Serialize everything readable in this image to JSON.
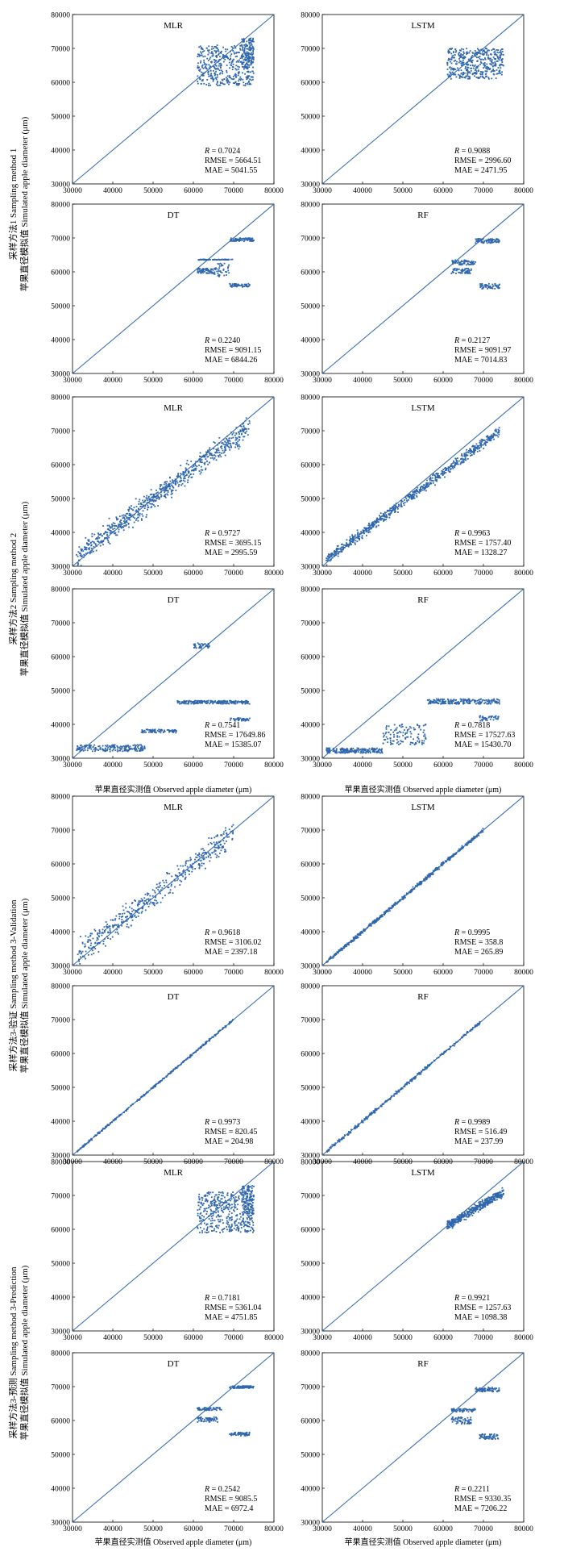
{
  "figure": {
    "x_axis_label": "苹果直径实测值 Observed apple diameter (μm)",
    "groups": [
      {
        "ylabel_line1": "采样方法1 Sampling method 1",
        "ylabel_line2": "苹果直径模拟值 Simulated apple diameter (μm)"
      },
      {
        "ylabel_line1": "采样方法2 Sampling method 2",
        "ylabel_line2": "苹果直径模拟值 Simulated apple diameter (μm)"
      },
      {
        "ylabel_line1": "采样方法3-验证 Sampling method 3-Validation",
        "ylabel_line2": "苹果直径模拟值 Simulated apple diameter (μm)"
      },
      {
        "ylabel_line1": "采样方法3-预测 Sampling method 3-Prediction",
        "ylabel_line2": "苹果直径模拟值 Simulated apple diameter (μm)"
      }
    ]
  },
  "colors": {
    "line": "#3a70b5",
    "points": "#2f67ae",
    "axes": "#000000"
  },
  "chart_data": [
    {
      "type": "scatter",
      "group": 1,
      "title": "MLR",
      "xlim": [
        30000,
        80000
      ],
      "ylim": [
        30000,
        80000
      ],
      "xticks": [
        30000,
        40000,
        50000,
        60000,
        70000,
        80000
      ],
      "yticks": [
        30000,
        40000,
        50000,
        60000,
        70000,
        80000
      ],
      "reference_line": "1:1",
      "stats": {
        "R": "0.7024",
        "RMSE": "5664.51",
        "MAE": "5041.55"
      },
      "point_clusters": [
        {
          "x": [
            61000,
            75000
          ],
          "y": [
            59000,
            71000
          ],
          "n": 420
        },
        {
          "x": [
            72000,
            75000
          ],
          "y": [
            64000,
            73000
          ],
          "n": 120
        }
      ]
    },
    {
      "type": "scatter",
      "group": 1,
      "title": "LSTM",
      "xlim": [
        30000,
        80000
      ],
      "ylim": [
        30000,
        80000
      ],
      "xticks": [
        30000,
        40000,
        50000,
        60000,
        70000,
        80000
      ],
      "yticks": [
        30000,
        40000,
        50000,
        60000,
        70000,
        80000
      ],
      "reference_line": "1:1",
      "stats": {
        "R": "0.9088",
        "RMSE": "2996.60",
        "MAE": "2471.95"
      },
      "point_clusters": [
        {
          "x": [
            61000,
            75000
          ],
          "y": [
            61000,
            70000
          ],
          "n": 420
        }
      ]
    },
    {
      "type": "scatter",
      "group": 1,
      "title": "DT",
      "xlim": [
        30000,
        80000
      ],
      "ylim": [
        30000,
        80000
      ],
      "xticks": [
        30000,
        40000,
        50000,
        60000,
        70000,
        80000
      ],
      "yticks": [
        30000,
        40000,
        50000,
        60000,
        70000,
        80000
      ],
      "reference_line": "1:1",
      "stats": {
        "R": "0.2240",
        "RMSE": "9091.15",
        "MAE": "6844.26"
      },
      "point_clusters": [
        {
          "x": [
            61000,
            70000
          ],
          "y": [
            63500,
            63700
          ],
          "n": 60
        },
        {
          "x": [
            61000,
            65000
          ],
          "y": [
            59500,
            61000
          ],
          "n": 60
        },
        {
          "x": [
            69000,
            75000
          ],
          "y": [
            69000,
            70000
          ],
          "n": 80
        },
        {
          "x": [
            69000,
            74000
          ],
          "y": [
            55500,
            56500
          ],
          "n": 60
        },
        {
          "x": [
            65000,
            69000
          ],
          "y": [
            58500,
            62500
          ],
          "n": 40
        }
      ]
    },
    {
      "type": "scatter",
      "group": 1,
      "title": "RF",
      "xlim": [
        30000,
        80000
      ],
      "ylim": [
        30000,
        80000
      ],
      "xticks": [
        30000,
        40000,
        50000,
        60000,
        70000,
        80000
      ],
      "yticks": [
        30000,
        40000,
        50000,
        60000,
        70000,
        80000
      ],
      "reference_line": "1:1",
      "stats": {
        "R": "0.2127",
        "RMSE": "9091.97",
        "MAE": "7014.83"
      },
      "point_clusters": [
        {
          "x": [
            62000,
            68000
          ],
          "y": [
            62000,
            63500
          ],
          "n": 60
        },
        {
          "x": [
            62000,
            67000
          ],
          "y": [
            59500,
            61000
          ],
          "n": 60
        },
        {
          "x": [
            68000,
            74000
          ],
          "y": [
            68500,
            69800
          ],
          "n": 80
        },
        {
          "x": [
            69000,
            74000
          ],
          "y": [
            55000,
            56500
          ],
          "n": 60
        }
      ]
    },
    {
      "type": "scatter",
      "group": 2,
      "title": "MLR",
      "xlim": [
        30000,
        80000
      ],
      "ylim": [
        30000,
        80000
      ],
      "xticks": [
        30000,
        40000,
        50000,
        60000,
        70000,
        80000
      ],
      "yticks": [
        30000,
        40000,
        50000,
        60000,
        70000,
        80000
      ],
      "reference_line": "1:1",
      "stats": {
        "R": "0.9727",
        "RMSE": "3695.15",
        "MAE": "2995.59"
      },
      "point_clusters": [
        {
          "x": [
            31000,
            74000
          ],
          "y": [
            33000,
            71000
          ],
          "n": 700,
          "trend": "diag",
          "spread": 3000
        }
      ]
    },
    {
      "type": "scatter",
      "group": 2,
      "title": "LSTM",
      "xlim": [
        30000,
        80000
      ],
      "ylim": [
        30000,
        80000
      ],
      "xticks": [
        30000,
        40000,
        50000,
        60000,
        70000,
        80000
      ],
      "yticks": [
        30000,
        40000,
        50000,
        60000,
        70000,
        80000
      ],
      "reference_line": "1:1",
      "stats": {
        "R": "0.9963",
        "RMSE": "1757.40",
        "MAE": "1328.27"
      },
      "point_clusters": [
        {
          "x": [
            31000,
            74000
          ],
          "y": [
            32000,
            70000
          ],
          "n": 700,
          "trend": "diag",
          "spread": 1400
        }
      ]
    },
    {
      "type": "scatter",
      "group": 2,
      "title": "DT",
      "xlim": [
        30000,
        80000
      ],
      "ylim": [
        30000,
        80000
      ],
      "xticks": [
        30000,
        40000,
        50000,
        60000,
        70000,
        80000
      ],
      "yticks": [
        30000,
        40000,
        50000,
        60000,
        70000,
        80000
      ],
      "reference_line": "1:1",
      "stats": {
        "R": "0.7541",
        "RMSE": "17649.86",
        "MAE": "15385.07"
      },
      "point_clusters": [
        {
          "x": [
            31000,
            48000
          ],
          "y": [
            32000,
            34000
          ],
          "n": 200
        },
        {
          "x": [
            47000,
            56000
          ],
          "y": [
            37500,
            38500
          ],
          "n": 80
        },
        {
          "x": [
            56000,
            74000
          ],
          "y": [
            46000,
            47000
          ],
          "n": 200
        },
        {
          "x": [
            60000,
            64000
          ],
          "y": [
            62500,
            64000
          ],
          "n": 40
        },
        {
          "x": [
            69000,
            74000
          ],
          "y": [
            41000,
            42000
          ],
          "n": 40
        }
      ]
    },
    {
      "type": "scatter",
      "group": 2,
      "title": "RF",
      "xlim": [
        30000,
        80000
      ],
      "ylim": [
        30000,
        80000
      ],
      "xticks": [
        30000,
        40000,
        50000,
        60000,
        70000,
        80000
      ],
      "yticks": [
        30000,
        40000,
        50000,
        60000,
        70000,
        80000
      ],
      "reference_line": "1:1",
      "stats": {
        "R": "0.7818",
        "RMSE": "17527.63",
        "MAE": "15430.70"
      },
      "point_clusters": [
        {
          "x": [
            31000,
            45000
          ],
          "y": [
            31500,
            33000
          ],
          "n": 200
        },
        {
          "x": [
            45000,
            56000
          ],
          "y": [
            34000,
            40000
          ],
          "n": 120
        },
        {
          "x": [
            56000,
            74000
          ],
          "y": [
            46000,
            47500
          ],
          "n": 200
        },
        {
          "x": [
            69000,
            74000
          ],
          "y": [
            41000,
            42500
          ],
          "n": 40
        }
      ]
    },
    {
      "type": "scatter",
      "group": 3,
      "title": "MLR",
      "xlim": [
        30000,
        80000
      ],
      "ylim": [
        30000,
        80000
      ],
      "xticks": [
        30000,
        40000,
        50000,
        60000,
        70000,
        80000
      ],
      "yticks": [
        30000,
        40000,
        50000,
        60000,
        70000,
        80000
      ],
      "reference_line": "1:1",
      "stats": {
        "R": "0.9618",
        "RMSE": "3106.02",
        "MAE": "2397.18"
      },
      "point_clusters": [
        {
          "x": [
            31000,
            70000
          ],
          "y": [
            33000,
            69000
          ],
          "n": 450,
          "trend": "diag",
          "spread": 3500
        }
      ]
    },
    {
      "type": "scatter",
      "group": 3,
      "title": "LSTM",
      "xlim": [
        30000,
        80000
      ],
      "ylim": [
        30000,
        80000
      ],
      "xticks": [
        30000,
        40000,
        50000,
        60000,
        70000,
        80000
      ],
      "yticks": [
        30000,
        40000,
        50000,
        60000,
        70000,
        80000
      ],
      "reference_line": "1:1",
      "stats": {
        "R": "0.9995",
        "RMSE": "358.8",
        "MAE": "265.89"
      },
      "point_clusters": [
        {
          "x": [
            31000,
            70000
          ],
          "y": [
            31000,
            70000
          ],
          "n": 500,
          "trend": "diag",
          "spread": 500
        }
      ]
    },
    {
      "type": "scatter",
      "group": 3,
      "title": "DT",
      "xlim": [
        30000,
        80000
      ],
      "ylim": [
        30000,
        80000
      ],
      "xticks": [
        30000,
        40000,
        50000,
        60000,
        70000,
        80000
      ],
      "yticks": [
        30000,
        40000,
        50000,
        60000,
        70000,
        80000
      ],
      "reference_line": "1:1",
      "stats": {
        "R": "0.9973",
        "RMSE": "820.45",
        "MAE": "204.98"
      },
      "point_clusters": [
        {
          "x": [
            31000,
            70000
          ],
          "y": [
            31000,
            70000
          ],
          "n": 300,
          "trend": "diag",
          "spread": 300
        }
      ]
    },
    {
      "type": "scatter",
      "group": 3,
      "title": "RF",
      "xlim": [
        30000,
        80000
      ],
      "ylim": [
        30000,
        80000
      ],
      "xticks": [
        30000,
        40000,
        50000,
        60000,
        70000,
        80000
      ],
      "yticks": [
        30000,
        40000,
        50000,
        60000,
        70000,
        80000
      ],
      "reference_line": "1:1",
      "stats": {
        "R": "0.9989",
        "RMSE": "516.49",
        "MAE": "237.99"
      },
      "point_clusters": [
        {
          "x": [
            31000,
            70000
          ],
          "y": [
            31000,
            70000
          ],
          "n": 300,
          "trend": "diag",
          "spread": 450
        }
      ]
    },
    {
      "type": "scatter",
      "group": 4,
      "title": "MLR",
      "xlim": [
        30000,
        80000
      ],
      "ylim": [
        30000,
        80000
      ],
      "xticks": [
        30000,
        40000,
        50000,
        60000,
        70000,
        80000
      ],
      "yticks": [
        30000,
        40000,
        50000,
        60000,
        70000,
        80000
      ],
      "reference_line": "1:1",
      "stats": {
        "R": "0.7181",
        "RMSE": "5361.04",
        "MAE": "4751.85"
      },
      "point_clusters": [
        {
          "x": [
            61000,
            75000
          ],
          "y": [
            59000,
            71000
          ],
          "n": 420
        },
        {
          "x": [
            72000,
            75000
          ],
          "y": [
            64000,
            73000
          ],
          "n": 120
        }
      ]
    },
    {
      "type": "scatter",
      "group": 4,
      "title": "LSTM",
      "xlim": [
        30000,
        80000
      ],
      "ylim": [
        30000,
        80000
      ],
      "xticks": [
        30000,
        40000,
        50000,
        60000,
        70000,
        80000
      ],
      "yticks": [
        30000,
        40000,
        50000,
        60000,
        70000,
        80000
      ],
      "reference_line": "1:1",
      "stats": {
        "R": "0.9921",
        "RMSE": "1257.63",
        "MAE": "1098.38"
      },
      "point_clusters": [
        {
          "x": [
            61000,
            75000
          ],
          "y": [
            61000,
            71000
          ],
          "n": 420,
          "trend": "diag",
          "spread": 1200
        }
      ]
    },
    {
      "type": "scatter",
      "group": 4,
      "title": "DT",
      "xlim": [
        30000,
        80000
      ],
      "ylim": [
        30000,
        80000
      ],
      "xticks": [
        30000,
        40000,
        50000,
        60000,
        70000,
        80000
      ],
      "yticks": [
        30000,
        40000,
        50000,
        60000,
        70000,
        80000
      ],
      "reference_line": "1:1",
      "stats": {
        "R": "0.2542",
        "RMSE": "9085.5",
        "MAE": "6972.4"
      },
      "point_clusters": [
        {
          "x": [
            61000,
            67000
          ],
          "y": [
            63000,
            63800
          ],
          "n": 60
        },
        {
          "x": [
            61000,
            66000
          ],
          "y": [
            59500,
            61000
          ],
          "n": 60
        },
        {
          "x": [
            69000,
            75000
          ],
          "y": [
            69500,
            70200
          ],
          "n": 80
        },
        {
          "x": [
            69000,
            74000
          ],
          "y": [
            55500,
            56500
          ],
          "n": 60
        }
      ]
    },
    {
      "type": "scatter",
      "group": 4,
      "title": "RF",
      "xlim": [
        30000,
        80000
      ],
      "ylim": [
        30000,
        80000
      ],
      "xticks": [
        30000,
        40000,
        50000,
        60000,
        70000,
        80000
      ],
      "yticks": [
        30000,
        40000,
        50000,
        60000,
        70000,
        80000
      ],
      "reference_line": "1:1",
      "stats": {
        "R": "0.2211",
        "RMSE": "9330.35",
        "MAE": "7206.22"
      },
      "point_clusters": [
        {
          "x": [
            62000,
            68000
          ],
          "y": [
            62500,
            63500
          ],
          "n": 60
        },
        {
          "x": [
            62000,
            67000
          ],
          "y": [
            59000,
            61000
          ],
          "n": 60
        },
        {
          "x": [
            68000,
            74000
          ],
          "y": [
            68500,
            69800
          ],
          "n": 80
        },
        {
          "x": [
            69000,
            74000
          ],
          "y": [
            54500,
            56000
          ],
          "n": 60
        }
      ]
    }
  ]
}
